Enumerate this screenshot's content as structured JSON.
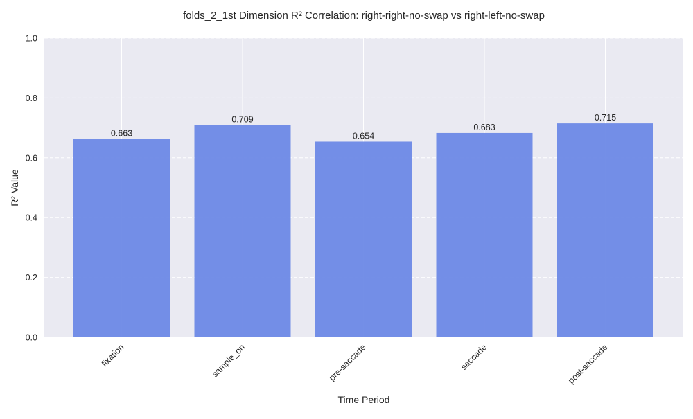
{
  "chart_data": {
    "type": "bar",
    "title": "folds_2_1st Dimension R² Correlation: right-right-no-swap vs right-left-no-swap",
    "xlabel": "Time Period",
    "ylabel": "R² Value",
    "categories": [
      "fixation",
      "sample_on",
      "pre-saccade",
      "saccade",
      "post-saccade"
    ],
    "values": [
      0.663,
      0.709,
      0.654,
      0.683,
      0.715
    ],
    "value_labels": [
      "0.663",
      "0.709",
      "0.654",
      "0.683",
      "0.715"
    ],
    "ylim": [
      0,
      1.0
    ],
    "yticks": [
      0.0,
      0.2,
      0.4,
      0.6,
      0.8,
      1.0
    ],
    "ytick_labels": [
      "0.0",
      "0.2",
      "0.4",
      "0.6",
      "0.8",
      "1.0"
    ],
    "grid": true,
    "colors": {
      "bar": "#6d89e6",
      "plot_background": "#eaeaf2",
      "grid": "#ffffff"
    }
  }
}
